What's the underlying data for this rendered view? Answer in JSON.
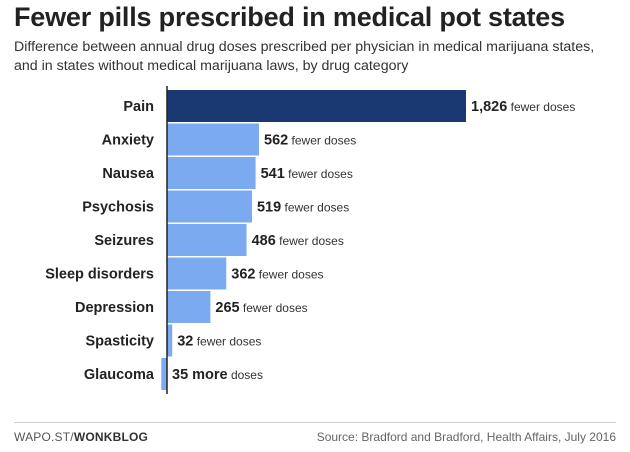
{
  "header": {
    "title": "Fewer pills prescribed in medical pot states",
    "subtitle": "Difference between annual drug doses prescribed per physician in medical marijuana states, and in states without medical marijuana laws, by drug category"
  },
  "footer": {
    "credit_prefix": "WAPO.ST/",
    "credit_bold": "WONKBLOG",
    "source": "Source: Bradford and Bradford, Health Affairs, July 2016"
  },
  "colors": {
    "highlight": "#1a3872",
    "bar": "#7caaf0",
    "axis": "#222222"
  },
  "chart_data": {
    "type": "bar",
    "orientation": "horizontal",
    "title": "Fewer pills prescribed in medical pot states",
    "subtitle": "Difference between annual drug doses prescribed per physician in medical marijuana states, and in states without medical marijuana laws, by drug category",
    "categories": [
      "Pain",
      "Anxiety",
      "Nausea",
      "Psychosis",
      "Seizures",
      "Sleep disorders",
      "Depression",
      "Spasticity",
      "Glaucoma"
    ],
    "values": [
      1826,
      562,
      541,
      519,
      486,
      362,
      265,
      32,
      -35
    ],
    "labels": [
      {
        "number": "1,826",
        "suffix": "fewer doses"
      },
      {
        "number": "562",
        "suffix": "fewer doses"
      },
      {
        "number": "541",
        "suffix": "fewer doses"
      },
      {
        "number": "519",
        "suffix": "fewer doses"
      },
      {
        "number": "486",
        "suffix": "fewer doses"
      },
      {
        "number": "362",
        "suffix": "fewer doses"
      },
      {
        "number": "265",
        "suffix": "fewer doses"
      },
      {
        "number": "32",
        "suffix": "fewer doses"
      },
      {
        "number": "35 more",
        "suffix": "doses"
      }
    ],
    "highlight_index": 0,
    "xlim": [
      -35,
      1826
    ],
    "grid": false,
    "xlabel": "",
    "ylabel": ""
  }
}
